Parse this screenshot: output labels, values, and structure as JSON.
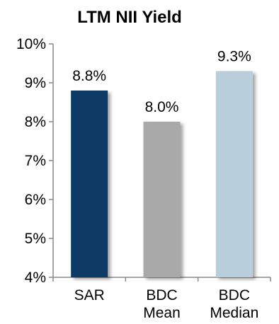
{
  "chart_data": {
    "type": "bar",
    "title": "LTM NII Yield",
    "categories": [
      [
        "SAR"
      ],
      [
        "BDC",
        "Mean"
      ],
      [
        "BDC",
        "Median"
      ]
    ],
    "values": [
      8.8,
      8.0,
      9.3
    ],
    "data_labels": [
      "8.8%",
      "8.0%",
      "9.3%"
    ],
    "bar_colors": [
      "#0e3a66",
      "#a9a9a9",
      "#b8cedb"
    ],
    "ylim": [
      4,
      10
    ],
    "yticks": [
      4,
      5,
      6,
      7,
      8,
      9,
      10
    ],
    "ytick_labels": [
      "4%",
      "5%",
      "6%",
      "7%",
      "8%",
      "9%",
      "10%"
    ],
    "xlabel": "",
    "ylabel": "",
    "grid": false,
    "legend": "none"
  }
}
